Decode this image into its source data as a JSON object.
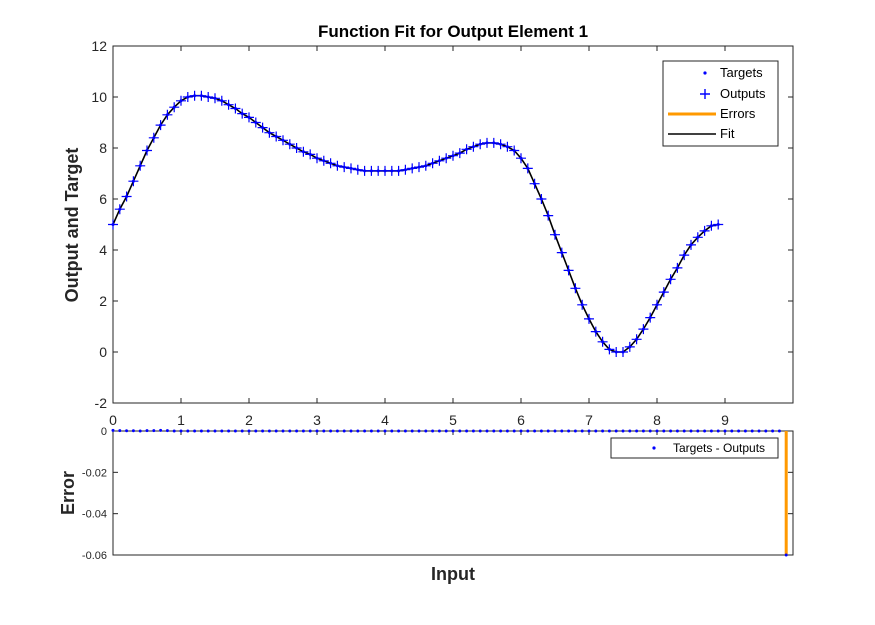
{
  "chart_data": [
    {
      "type": "line",
      "title": "Function Fit for Output Element 1",
      "xlabel": "",
      "ylabel": "Output and Target",
      "xlim": [
        0,
        10
      ],
      "ylim": [
        -2,
        12
      ],
      "x_ticks": [
        "0",
        "1",
        "2",
        "3",
        "4",
        "5",
        "6",
        "7",
        "8",
        "9"
      ],
      "y_ticks": [
        "-2",
        "0",
        "2",
        "4",
        "6",
        "8",
        "10",
        "12"
      ],
      "grid": false,
      "legend_position": "top-right",
      "legend": [
        "Targets",
        "Outputs",
        "Errors",
        "Fit"
      ],
      "colors": {
        "targets": "#0000ff",
        "outputs": "#0000ff",
        "errors": "#ff9900",
        "fit": "#000000"
      },
      "sample_spacing": 0.1,
      "series": [
        {
          "name": "Fit",
          "x_start": 0,
          "x_step": 0.1,
          "values": [
            5.0,
            5.6,
            6.1,
            6.7,
            7.3,
            7.9,
            8.4,
            8.9,
            9.3,
            9.6,
            9.85,
            10.0,
            10.05,
            10.05,
            10.0,
            9.95,
            9.85,
            9.7,
            9.55,
            9.35,
            9.2,
            9.0,
            8.8,
            8.6,
            8.45,
            8.3,
            8.15,
            8.0,
            7.85,
            7.75,
            7.6,
            7.5,
            7.4,
            7.3,
            7.25,
            7.2,
            7.15,
            7.1,
            7.1,
            7.1,
            7.1,
            7.1,
            7.1,
            7.15,
            7.2,
            7.25,
            7.3,
            7.4,
            7.5,
            7.6,
            7.7,
            7.8,
            7.95,
            8.05,
            8.15,
            8.2,
            8.2,
            8.15,
            8.05,
            7.9,
            7.6,
            7.2,
            6.6,
            6.0,
            5.35,
            4.6,
            3.9,
            3.2,
            2.5,
            1.85,
            1.3,
            0.8,
            0.4,
            0.1,
            0.0,
            0.0,
            0.2,
            0.5,
            0.9,
            1.35,
            1.85,
            2.35,
            2.85,
            3.3,
            3.8,
            4.2,
            4.5,
            4.75,
            4.95,
            5.0
          ]
        }
      ]
    },
    {
      "type": "scatter",
      "title": "",
      "xlabel": "Input",
      "ylabel": "Error",
      "xlim": [
        0,
        10
      ],
      "ylim": [
        -0.06,
        0
      ],
      "y_ticks": [
        "0",
        "-0.02",
        "-0.04",
        "-0.06"
      ],
      "legend_position": "top-right",
      "legend": [
        "Targets - Outputs"
      ],
      "series": [
        {
          "name": "Targets - Outputs",
          "x_start": 0,
          "x_step": 0.1,
          "values": [
            0.0003,
            0.0002,
            0.0001,
            0.0001,
            0.0,
            0.0002,
            0.0002,
            0.0003,
            0.0002,
            0.0,
            0.0,
            0.0,
            0.0,
            0.0,
            0.0,
            0.0,
            0.0,
            0.0,
            0.0,
            0.0,
            0.0,
            0.0,
            0.0,
            0.0,
            0.0,
            0.0,
            0.0,
            0.0,
            0.0,
            0.0,
            0.0,
            0.0,
            0.0,
            0.0,
            0.0,
            0.0,
            0.0,
            0.0,
            0.0,
            0.0,
            0.0,
            0.0,
            0.0,
            0.0,
            0.0,
            0.0,
            0.0,
            0.0,
            0.0,
            0.0,
            0.0,
            0.0,
            0.0,
            0.0,
            0.0,
            0.0,
            0.0,
            0.0,
            0.0,
            0.0,
            0.0,
            0.0,
            0.0,
            0.0,
            0.0,
            0.0,
            0.0,
            0.0,
            0.0,
            0.0,
            0.0,
            0.0,
            0.0,
            0.0,
            0.0,
            0.0,
            0.0,
            0.0,
            0.0,
            0.0,
            0.0,
            0.0,
            0.0,
            0.0,
            0.0,
            0.0,
            0.0,
            0.0,
            0.0,
            0.0,
            0.0,
            0.0,
            0.0,
            0.0,
            0.0,
            0.0,
            0.0,
            0.0,
            0.0,
            -0.06
          ]
        }
      ]
    }
  ]
}
